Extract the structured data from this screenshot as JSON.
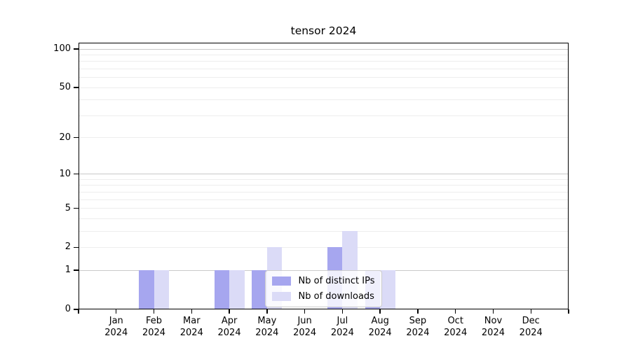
{
  "chart_data": {
    "type": "bar",
    "title": "tensor 2024",
    "xlabel": "",
    "ylabel": "",
    "categories": [
      "Jan",
      "Feb",
      "Mar",
      "Apr",
      "May",
      "Jun",
      "Jul",
      "Aug",
      "Sep",
      "Oct",
      "Nov",
      "Dec"
    ],
    "x_tick_year": "2024",
    "series": [
      {
        "name": "Nb of distinct IPs",
        "color": "#a6a6ef",
        "values": [
          0,
          1,
          0,
          1,
          1,
          0,
          2,
          1,
          0,
          0,
          0,
          0
        ]
      },
      {
        "name": "Nb of downloads",
        "color": "#dbdbf7",
        "values": [
          0,
          1,
          0,
          1,
          2,
          0,
          3,
          1,
          0,
          0,
          0,
          0
        ]
      }
    ],
    "yscale": "log1p",
    "ylim": [
      0,
      112
    ],
    "yticks": [
      0,
      1,
      2,
      5,
      10,
      20,
      50,
      100
    ],
    "gridlines": {
      "major_values": [
        1,
        10,
        100
      ],
      "minor_values": [
        2,
        3,
        4,
        5,
        6,
        7,
        8,
        9,
        20,
        30,
        40,
        50,
        60,
        70,
        80,
        90
      ],
      "major_color": "#c9c9c9",
      "minor_color": "#ededed"
    },
    "legend": {
      "position": "lower center"
    },
    "bar_width_frac": 0.4,
    "grid": "on"
  }
}
